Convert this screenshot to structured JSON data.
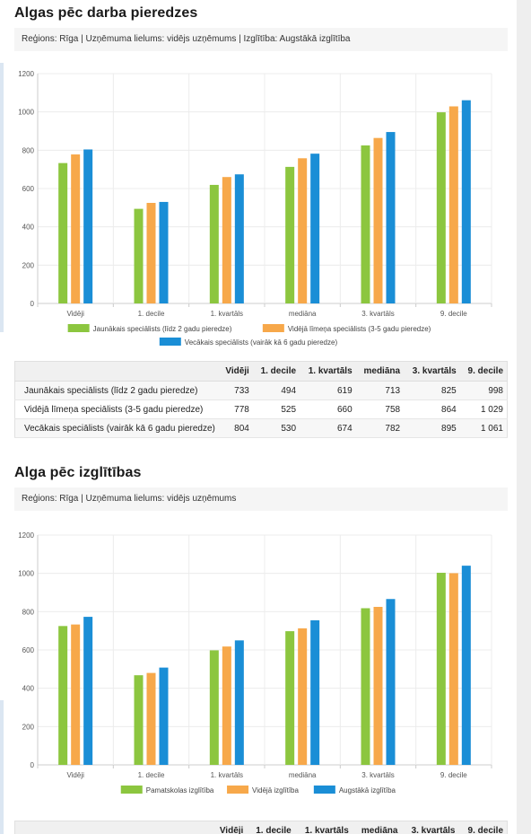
{
  "sections": [
    {
      "title": "Algas pēc darba pieredzes",
      "filter": "Reģions: Rīga | Uzņēmuma lielums: vidējs uzņēmums | Izglītība: Augstākā izglītība",
      "table": {
        "header": [
          "",
          "Vidēji",
          "1. decile",
          "1. kvartāls",
          "mediāna",
          "3. kvartāls",
          "9. decile"
        ],
        "rows": [
          {
            "label": "Jaunākais speciālists (līdz 2 gadu pieredze)",
            "cells": [
              "733",
              "494",
              "619",
              "713",
              "825",
              "998"
            ]
          },
          {
            "label": "Vidējā līmeņa speciālists (3-5 gadu pieredze)",
            "cells": [
              "778",
              "525",
              "660",
              "758",
              "864",
              "1 029"
            ]
          },
          {
            "label": "Vecākais speciālists (vairāk kā 6 gadu pieredze)",
            "cells": [
              "804",
              "530",
              "674",
              "782",
              "895",
              "1 061"
            ]
          }
        ]
      }
    },
    {
      "title": "Alga pēc izglītības",
      "filter": "Reģions: Rīga | Uzņēmuma lielums: vidējs uzņēmums",
      "table": {
        "header": [
          "",
          "Vidēji",
          "1. decile",
          "1. kvartāls",
          "mediāna",
          "3. kvartāls",
          "9. decile"
        ],
        "rows": []
      }
    }
  ],
  "colors": {
    "green": "#8cc63f",
    "orange": "#f7a84a",
    "blue": "#1a8ed6"
  },
  "chart_data": [
    {
      "type": "bar",
      "title": "",
      "categories": [
        "Vidēji",
        "1. decile",
        "1. kvartāls",
        "mediāna",
        "3. kvartāls",
        "9. decile"
      ],
      "series": [
        {
          "name": "Jaunākais speciālists (līdz 2 gadu pieredze)",
          "color": "#8cc63f",
          "values": [
            733,
            494,
            619,
            713,
            825,
            998
          ]
        },
        {
          "name": "Vidējā līmeņa speciālists (3-5 gadu pieredze)",
          "color": "#f7a84a",
          "values": [
            778,
            525,
            660,
            758,
            864,
            1029
          ]
        },
        {
          "name": "Vecākais speciālists (vairāk kā 6 gadu pieredze)",
          "color": "#1a8ed6",
          "values": [
            804,
            530,
            674,
            782,
            895,
            1061
          ]
        }
      ],
      "yticks": [
        0,
        200,
        400,
        600,
        800,
        1000,
        1200
      ],
      "ylim": [
        0,
        1200
      ],
      "grid": true,
      "legend": "bottom"
    },
    {
      "type": "bar",
      "title": "",
      "categories": [
        "Vidēji",
        "1. decile",
        "1. kvartāls",
        "mediāna",
        "3. kvartāls",
        "9. decile"
      ],
      "series": [
        {
          "name": "Pamatskolas izglītība",
          "color": "#8cc63f",
          "values": [
            725,
            468,
            598,
            698,
            818,
            1003
          ]
        },
        {
          "name": "Vidējā izglītība",
          "color": "#f7a84a",
          "values": [
            733,
            480,
            618,
            713,
            825,
            1001
          ]
        },
        {
          "name": "Augstākā izglītība",
          "color": "#1a8ed6",
          "values": [
            773,
            508,
            650,
            755,
            866,
            1040
          ]
        }
      ],
      "yticks": [
        0,
        200,
        400,
        600,
        800,
        1000,
        1200
      ],
      "ylim": [
        0,
        1200
      ],
      "grid": true,
      "legend": "bottom"
    }
  ]
}
